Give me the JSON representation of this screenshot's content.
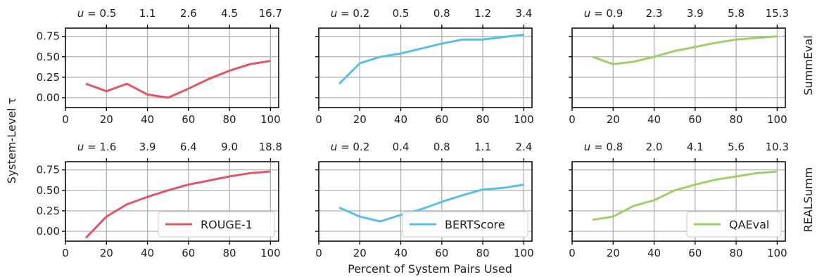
{
  "figure": {
    "ylabel": "System-Level τ",
    "xlabel": "Percent of System Pairs Used",
    "row_labels": [
      "SummEval",
      "REALSumm"
    ],
    "u_prefix": "u = ",
    "legend": [
      "ROUGE-1",
      "BERTScore",
      "QAEval"
    ],
    "colors": {
      "ROUGE-1": "#e45463",
      "BERTScore": "#58c0e6",
      "QAEval": "#9ed068"
    }
  },
  "chart_data": [
    {
      "type": "line",
      "row": "SummEval",
      "series_name": "ROUGE-1",
      "x": [
        10,
        20,
        30,
        40,
        50,
        60,
        70,
        80,
        90,
        100
      ],
      "values": [
        0.17,
        0.08,
        0.17,
        0.04,
        0.0,
        0.11,
        0.23,
        0.33,
        0.41,
        0.45
      ],
      "top_ticks": [
        "0.5",
        "1.1",
        "2.6",
        "4.5",
        "16.7"
      ],
      "xlim": [
        0,
        104
      ],
      "ylim": [
        -0.12,
        0.85
      ],
      "xticks": [
        0,
        20,
        40,
        60,
        80,
        100
      ],
      "yticks": [
        "0.00",
        "0.25",
        "0.50",
        "0.75"
      ],
      "grid": true,
      "legend": false
    },
    {
      "type": "line",
      "row": "SummEval",
      "series_name": "BERTScore",
      "x": [
        10,
        20,
        30,
        40,
        50,
        60,
        70,
        80,
        90,
        100
      ],
      "values": [
        0.17,
        0.42,
        0.5,
        0.54,
        0.6,
        0.66,
        0.71,
        0.71,
        0.74,
        0.77
      ],
      "top_ticks": [
        "0.2",
        "0.5",
        "0.8",
        "1.2",
        "3.4"
      ],
      "xlim": [
        0,
        104
      ],
      "ylim": [
        -0.12,
        0.85
      ],
      "xticks": [
        0,
        20,
        40,
        60,
        80,
        100
      ],
      "yticks": [
        "0.00",
        "0.25",
        "0.50",
        "0.75"
      ],
      "grid": true,
      "legend": false
    },
    {
      "type": "line",
      "row": "SummEval",
      "series_name": "QAEval",
      "x": [
        10,
        20,
        30,
        40,
        50,
        60,
        70,
        80,
        90,
        100
      ],
      "values": [
        0.5,
        0.41,
        0.44,
        0.5,
        0.57,
        0.62,
        0.67,
        0.71,
        0.73,
        0.75
      ],
      "top_ticks": [
        "0.9",
        "2.3",
        "3.9",
        "5.8",
        "15.3"
      ],
      "xlim": [
        0,
        104
      ],
      "ylim": [
        -0.12,
        0.85
      ],
      "xticks": [
        0,
        20,
        40,
        60,
        80,
        100
      ],
      "yticks": [
        "0.00",
        "0.25",
        "0.50",
        "0.75"
      ],
      "grid": true,
      "legend": false
    },
    {
      "type": "line",
      "row": "REALSumm",
      "series_name": "ROUGE-1",
      "x": [
        10,
        20,
        30,
        40,
        50,
        60,
        70,
        80,
        90,
        100
      ],
      "values": [
        -0.08,
        0.18,
        0.33,
        0.42,
        0.5,
        0.57,
        0.62,
        0.67,
        0.71,
        0.73
      ],
      "top_ticks": [
        "1.6",
        "3.9",
        "6.4",
        "9.0",
        "18.8"
      ],
      "xlim": [
        0,
        104
      ],
      "ylim": [
        -0.12,
        0.85
      ],
      "xticks": [
        0,
        20,
        40,
        60,
        80,
        100
      ],
      "yticks": [
        "0.00",
        "0.25",
        "0.50",
        "0.75"
      ],
      "grid": true,
      "legend": "lower-right"
    },
    {
      "type": "line",
      "row": "REALSumm",
      "series_name": "BERTScore",
      "x": [
        10,
        20,
        30,
        40,
        50,
        60,
        70,
        80,
        90,
        100
      ],
      "values": [
        0.29,
        0.18,
        0.12,
        0.2,
        0.27,
        0.36,
        0.44,
        0.51,
        0.53,
        0.57
      ],
      "top_ticks": [
        "0.2",
        "0.4",
        "0.8",
        "1.1",
        "2.4"
      ],
      "xlim": [
        0,
        104
      ],
      "ylim": [
        -0.12,
        0.85
      ],
      "xticks": [
        0,
        20,
        40,
        60,
        80,
        100
      ],
      "yticks": [
        "0.00",
        "0.25",
        "0.50",
        "0.75"
      ],
      "grid": true,
      "legend": "lower-right"
    },
    {
      "type": "line",
      "row": "REALSumm",
      "series_name": "QAEval",
      "x": [
        10,
        20,
        30,
        40,
        50,
        60,
        70,
        80,
        90,
        100
      ],
      "values": [
        0.14,
        0.18,
        0.31,
        0.38,
        0.5,
        0.57,
        0.63,
        0.67,
        0.71,
        0.73
      ],
      "top_ticks": [
        "0.8",
        "2.0",
        "4.1",
        "5.6",
        "10.3"
      ],
      "xlim": [
        0,
        104
      ],
      "ylim": [
        -0.12,
        0.85
      ],
      "xticks": [
        0,
        20,
        40,
        60,
        80,
        100
      ],
      "yticks": [
        "0.00",
        "0.25",
        "0.50",
        "0.75"
      ],
      "grid": true,
      "legend": "lower-right"
    }
  ]
}
